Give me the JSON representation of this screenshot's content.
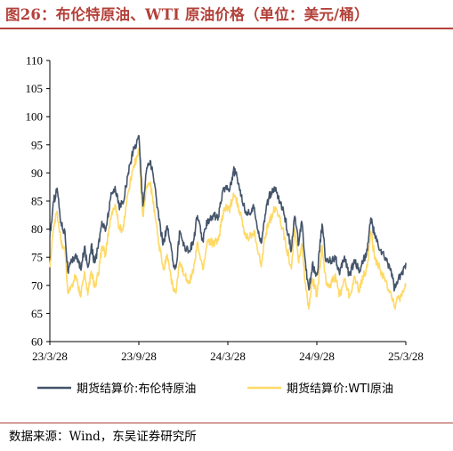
{
  "title": "图26：布伦特原油、WTI 原油价格（单位：美元/桶）",
  "source": "数据来源：Wind，东吴证券研究所",
  "chart_data": {
    "type": "line",
    "x_ticks": [
      "23/3/28",
      "23/9/28",
      "24/3/28",
      "24/9/28",
      "25/3/28"
    ],
    "x_range": [
      "2023-03-28",
      "2025-03-28"
    ],
    "ylim": [
      60,
      110
    ],
    "y_ticks": [
      "60",
      "65",
      "70",
      "75",
      "80",
      "85",
      "90",
      "95",
      "100",
      "105",
      "110"
    ],
    "grid": false,
    "legend_position": "bottom",
    "series": [
      {
        "name": "期货结算价:布伦特原油",
        "color": "#44546a",
        "points": [
          [
            "2023-03-28",
            78.6
          ],
          [
            "2023-04-05",
            85.0
          ],
          [
            "2023-04-12",
            87.3
          ],
          [
            "2023-04-20",
            81.1
          ],
          [
            "2023-04-28",
            79.5
          ],
          [
            "2023-05-04",
            72.5
          ],
          [
            "2023-05-12",
            74.2
          ],
          [
            "2023-05-20",
            75.6
          ],
          [
            "2023-05-31",
            72.7
          ],
          [
            "2023-06-07",
            76.9
          ],
          [
            "2023-06-14",
            73.2
          ],
          [
            "2023-06-21",
            77.1
          ],
          [
            "2023-06-28",
            74.0
          ],
          [
            "2023-07-05",
            76.6
          ],
          [
            "2023-07-13",
            81.4
          ],
          [
            "2023-07-20",
            79.6
          ],
          [
            "2023-07-31",
            85.6
          ],
          [
            "2023-08-09",
            87.6
          ],
          [
            "2023-08-17",
            84.1
          ],
          [
            "2023-08-25",
            84.5
          ],
          [
            "2023-09-05",
            90.0
          ],
          [
            "2023-09-15",
            93.9
          ],
          [
            "2023-09-27",
            96.6
          ],
          [
            "2023-10-05",
            84.1
          ],
          [
            "2023-10-13",
            90.9
          ],
          [
            "2023-10-20",
            92.2
          ],
          [
            "2023-10-30",
            87.5
          ],
          [
            "2023-11-07",
            81.6
          ],
          [
            "2023-11-16",
            77.4
          ],
          [
            "2023-11-24",
            80.6
          ],
          [
            "2023-12-06",
            74.3
          ],
          [
            "2023-12-12",
            73.2
          ],
          [
            "2023-12-20",
            79.7
          ],
          [
            "2023-12-29",
            77.0
          ],
          [
            "2024-01-08",
            76.1
          ],
          [
            "2024-01-17",
            77.9
          ],
          [
            "2024-01-25",
            82.4
          ],
          [
            "2024-02-05",
            77.9
          ],
          [
            "2024-02-15",
            81.6
          ],
          [
            "2024-02-26",
            82.5
          ],
          [
            "2024-03-08",
            82.1
          ],
          [
            "2024-03-19",
            87.4
          ],
          [
            "2024-04-01",
            87.4
          ],
          [
            "2024-04-08",
            90.4
          ],
          [
            "2024-04-12",
            90.0
          ],
          [
            "2024-04-22",
            87.0
          ],
          [
            "2024-05-01",
            83.4
          ],
          [
            "2024-05-10",
            82.8
          ],
          [
            "2024-05-20",
            83.7
          ],
          [
            "2024-06-04",
            77.5
          ],
          [
            "2024-06-12",
            82.6
          ],
          [
            "2024-06-20",
            85.7
          ],
          [
            "2024-07-03",
            87.3
          ],
          [
            "2024-07-12",
            85.0
          ],
          [
            "2024-07-22",
            82.4
          ],
          [
            "2024-08-05",
            76.3
          ],
          [
            "2024-08-12",
            82.3
          ],
          [
            "2024-08-20",
            77.2
          ],
          [
            "2024-08-26",
            81.4
          ],
          [
            "2024-09-04",
            72.7
          ],
          [
            "2024-09-10",
            69.2
          ],
          [
            "2024-09-17",
            73.7
          ],
          [
            "2024-09-27",
            71.9
          ],
          [
            "2024-10-07",
            80.9
          ],
          [
            "2024-10-15",
            74.2
          ],
          [
            "2024-10-24",
            74.4
          ],
          [
            "2024-11-04",
            75.1
          ],
          [
            "2024-11-12",
            71.9
          ],
          [
            "2024-11-22",
            75.2
          ],
          [
            "2024-12-02",
            71.8
          ],
          [
            "2024-12-13",
            74.5
          ],
          [
            "2024-12-23",
            72.6
          ],
          [
            "2024-12-31",
            74.6
          ],
          [
            "2025-01-08",
            76.2
          ],
          [
            "2025-01-15",
            82.0
          ],
          [
            "2025-01-24",
            78.5
          ],
          [
            "2025-02-04",
            76.2
          ],
          [
            "2025-02-14",
            74.7
          ],
          [
            "2025-02-25",
            73.0
          ],
          [
            "2025-03-05",
            69.3
          ],
          [
            "2025-03-12",
            70.9
          ],
          [
            "2025-03-20",
            72.0
          ],
          [
            "2025-03-28",
            74.0
          ]
        ]
      },
      {
        "name": "期货结算价:WTI原油",
        "color": "#ffd966",
        "points": [
          [
            "2023-03-28",
            73.2
          ],
          [
            "2023-04-05",
            80.6
          ],
          [
            "2023-04-12",
            83.2
          ],
          [
            "2023-04-20",
            77.4
          ],
          [
            "2023-04-28",
            76.8
          ],
          [
            "2023-05-04",
            68.6
          ],
          [
            "2023-05-12",
            70.0
          ],
          [
            "2023-05-20",
            71.7
          ],
          [
            "2023-05-31",
            68.1
          ],
          [
            "2023-06-07",
            72.5
          ],
          [
            "2023-06-14",
            68.3
          ],
          [
            "2023-06-21",
            72.5
          ],
          [
            "2023-06-28",
            69.6
          ],
          [
            "2023-07-05",
            71.8
          ],
          [
            "2023-07-13",
            77.0
          ],
          [
            "2023-07-20",
            75.6
          ],
          [
            "2023-07-31",
            81.8
          ],
          [
            "2023-08-09",
            84.4
          ],
          [
            "2023-08-17",
            80.4
          ],
          [
            "2023-08-25",
            79.8
          ],
          [
            "2023-09-05",
            86.7
          ],
          [
            "2023-09-15",
            90.8
          ],
          [
            "2023-09-27",
            93.7
          ],
          [
            "2023-10-05",
            82.3
          ],
          [
            "2023-10-13",
            87.7
          ],
          [
            "2023-10-20",
            88.3
          ],
          [
            "2023-10-30",
            82.3
          ],
          [
            "2023-11-07",
            77.4
          ],
          [
            "2023-11-16",
            72.9
          ],
          [
            "2023-11-24",
            75.5
          ],
          [
            "2023-12-06",
            69.4
          ],
          [
            "2023-12-12",
            68.6
          ],
          [
            "2023-12-20",
            74.2
          ],
          [
            "2023-12-29",
            71.7
          ],
          [
            "2024-01-08",
            70.8
          ],
          [
            "2024-01-17",
            72.6
          ],
          [
            "2024-01-25",
            77.4
          ],
          [
            "2024-02-05",
            72.8
          ],
          [
            "2024-02-15",
            78.0
          ],
          [
            "2024-02-26",
            77.6
          ],
          [
            "2024-03-08",
            78.0
          ],
          [
            "2024-03-19",
            83.5
          ],
          [
            "2024-04-01",
            83.7
          ],
          [
            "2024-04-08",
            86.4
          ],
          [
            "2024-04-12",
            85.7
          ],
          [
            "2024-04-22",
            82.9
          ],
          [
            "2024-05-01",
            79.0
          ],
          [
            "2024-05-10",
            78.3
          ],
          [
            "2024-05-20",
            79.8
          ],
          [
            "2024-06-04",
            73.3
          ],
          [
            "2024-06-12",
            78.5
          ],
          [
            "2024-06-20",
            81.3
          ],
          [
            "2024-07-03",
            83.9
          ],
          [
            "2024-07-12",
            82.2
          ],
          [
            "2024-07-22",
            78.4
          ],
          [
            "2024-08-05",
            72.9
          ],
          [
            "2024-08-12",
            80.1
          ],
          [
            "2024-08-20",
            74.0
          ],
          [
            "2024-08-26",
            77.4
          ],
          [
            "2024-09-04",
            69.2
          ],
          [
            "2024-09-10",
            65.8
          ],
          [
            "2024-09-17",
            71.2
          ],
          [
            "2024-09-27",
            68.2
          ],
          [
            "2024-10-07",
            77.1
          ],
          [
            "2024-10-15",
            70.6
          ],
          [
            "2024-10-24",
            70.2
          ],
          [
            "2024-11-04",
            71.5
          ],
          [
            "2024-11-12",
            68.1
          ],
          [
            "2024-11-22",
            71.2
          ],
          [
            "2024-12-02",
            68.0
          ],
          [
            "2024-12-13",
            71.3
          ],
          [
            "2024-12-23",
            69.2
          ],
          [
            "2024-12-31",
            71.7
          ],
          [
            "2025-01-08",
            73.3
          ],
          [
            "2025-01-15",
            79.6
          ],
          [
            "2025-01-24",
            74.7
          ],
          [
            "2025-02-04",
            72.7
          ],
          [
            "2025-02-14",
            70.7
          ],
          [
            "2025-02-25",
            68.9
          ],
          [
            "2025-03-05",
            66.3
          ],
          [
            "2025-03-12",
            67.7
          ],
          [
            "2025-03-20",
            68.1
          ],
          [
            "2025-03-28",
            69.9
          ]
        ]
      }
    ]
  }
}
